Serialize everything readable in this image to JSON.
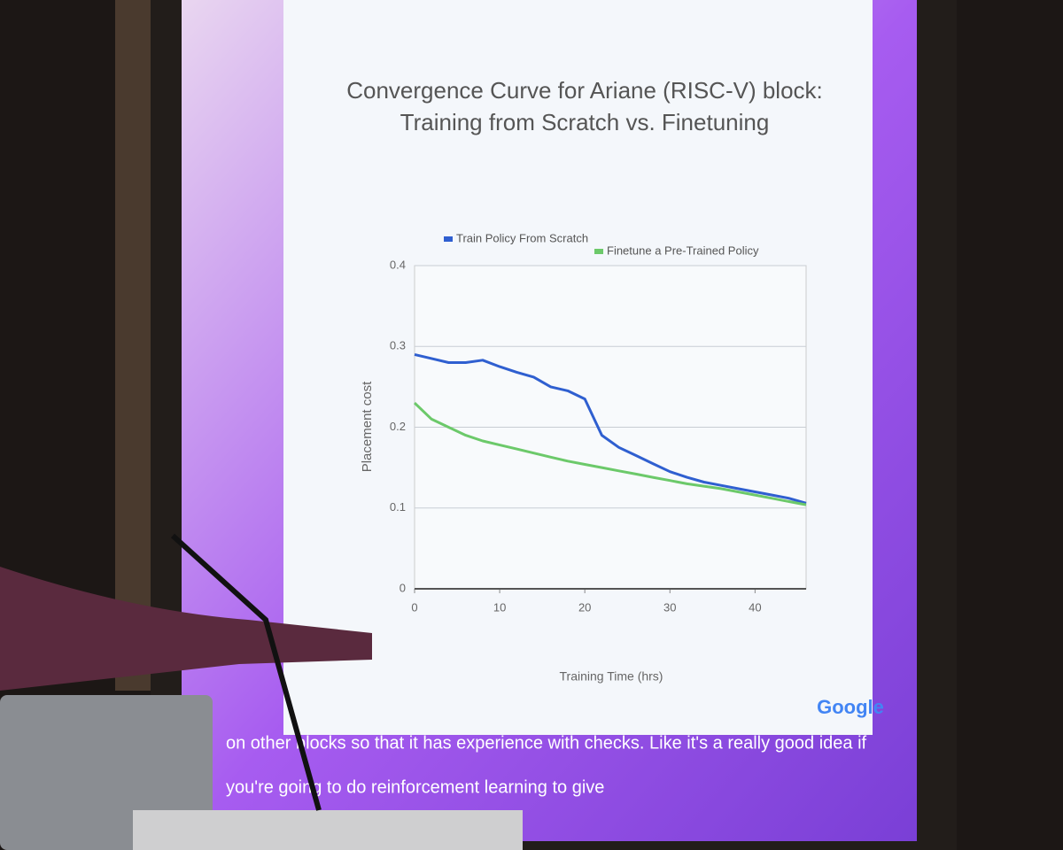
{
  "chart_data": {
    "type": "line",
    "title": [
      "Convergence Curve for Ariane (RISC-V) block:",
      "Training from Scratch vs. Finetuning"
    ],
    "x_label": "Training Time (hrs)",
    "y_label": "Placement cost",
    "x": [
      0,
      2,
      4,
      6,
      8,
      10,
      12,
      14,
      16,
      18,
      20,
      22,
      24,
      26,
      28,
      30,
      32,
      34,
      36,
      38,
      40,
      42,
      44,
      46
    ],
    "series": [
      {
        "name": "Train Policy From Scratch",
        "color": "#2f5fd0",
        "values": [
          0.29,
          0.285,
          0.28,
          0.28,
          0.283,
          0.275,
          0.268,
          0.262,
          0.25,
          0.245,
          0.235,
          0.19,
          0.175,
          0.165,
          0.155,
          0.145,
          0.138,
          0.132,
          0.128,
          0.124,
          0.12,
          0.116,
          0.112,
          0.106
        ]
      },
      {
        "name": "Finetune a Pre-Trained Policy",
        "color": "#6cc96a",
        "values": [
          0.23,
          0.21,
          0.2,
          0.19,
          0.183,
          0.178,
          0.173,
          0.168,
          0.163,
          0.158,
          0.154,
          0.15,
          0.146,
          0.142,
          0.138,
          0.134,
          0.13,
          0.127,
          0.124,
          0.12,
          0.116,
          0.112,
          0.108,
          0.104
        ]
      }
    ],
    "xlim": [
      0,
      46
    ],
    "xticks": [
      0,
      10,
      20,
      30,
      40
    ],
    "ylim": [
      0,
      0.4
    ],
    "yticks": [
      0,
      0.1,
      0.2,
      0.3,
      0.4
    ],
    "grid": true,
    "legend": "top"
  },
  "logo": "Google",
  "caption": [
    "on other blocks so that it has experience with checks. Like it's a really good idea if",
    "you're going to do reinforcement learning to give"
  ]
}
